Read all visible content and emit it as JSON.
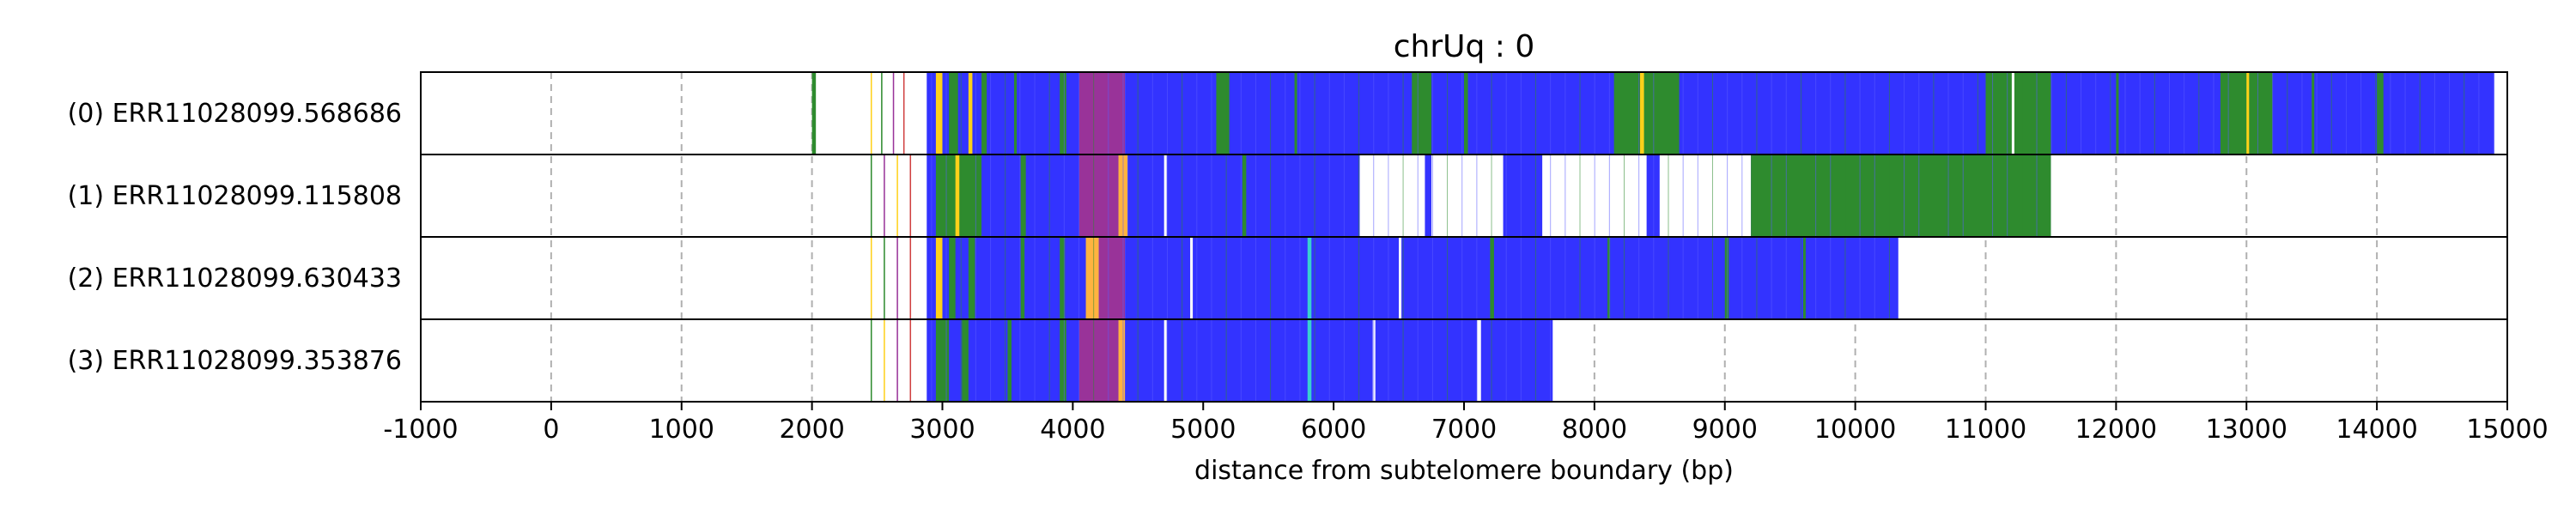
{
  "chart_data": {
    "type": "bar",
    "title": "chrUq : 0",
    "xlabel": "distance from subtelomere boundary (bp)",
    "ylabel": "",
    "xlim": [
      -1000,
      15000
    ],
    "xticks": [
      -1000,
      0,
      1000,
      2000,
      3000,
      4000,
      5000,
      6000,
      7000,
      8000,
      9000,
      10000,
      11000,
      12000,
      13000,
      14000,
      15000
    ],
    "grid": "vertical dashed",
    "colors": {
      "main": "#3333ff",
      "green": "#2e8b2e",
      "yellow": "#ffd11a",
      "orange": "#ffb340",
      "purple": "#993399",
      "white": "#ffffff",
      "gap": "#ffffff",
      "cyan": "#39d0d0",
      "red": "#d04040",
      "border": "#000000",
      "grid": "#b0b0b0"
    },
    "reads": [
      {
        "label": "(0) ERR11028099.568686",
        "end": 14900,
        "segments": [
          {
            "start": 2000,
            "end": 2030,
            "color": "green"
          },
          {
            "start": 2450,
            "end": 2460,
            "color": "yellow"
          },
          {
            "start": 2530,
            "end": 2540,
            "color": "green"
          },
          {
            "start": 2620,
            "end": 2630,
            "color": "purple"
          },
          {
            "start": 2700,
            "end": 2710,
            "color": "red"
          },
          {
            "start": 2880,
            "end": 4400,
            "color": "main"
          },
          {
            "start": 2950,
            "end": 3000,
            "color": "yellow"
          },
          {
            "start": 3050,
            "end": 3120,
            "color": "green"
          },
          {
            "start": 3200,
            "end": 3230,
            "color": "yellow"
          },
          {
            "start": 3300,
            "end": 3340,
            "color": "green"
          },
          {
            "start": 3550,
            "end": 3570,
            "color": "green"
          },
          {
            "start": 3900,
            "end": 3950,
            "color": "green"
          },
          {
            "start": 4050,
            "end": 4400,
            "color": "purple"
          },
          {
            "start": 4400,
            "end": 14900,
            "color": "main"
          },
          {
            "start": 5100,
            "end": 5200,
            "color": "green"
          },
          {
            "start": 5700,
            "end": 5720,
            "color": "green"
          },
          {
            "start": 6600,
            "end": 6750,
            "color": "green"
          },
          {
            "start": 7000,
            "end": 7030,
            "color": "green"
          },
          {
            "start": 8150,
            "end": 8650,
            "color": "green"
          },
          {
            "start": 8350,
            "end": 8380,
            "color": "yellow"
          },
          {
            "start": 11000,
            "end": 11500,
            "color": "green"
          },
          {
            "start": 11200,
            "end": 11220,
            "color": "white"
          },
          {
            "start": 12000,
            "end": 12020,
            "color": "green"
          },
          {
            "start": 12800,
            "end": 13200,
            "color": "green"
          },
          {
            "start": 13000,
            "end": 13020,
            "color": "yellow"
          },
          {
            "start": 13500,
            "end": 13520,
            "color": "green"
          },
          {
            "start": 14000,
            "end": 14050,
            "color": "green"
          }
        ]
      },
      {
        "label": "(1) ERR11028099.115808",
        "end": 11500,
        "segments": [
          {
            "start": 2450,
            "end": 2460,
            "color": "green"
          },
          {
            "start": 2550,
            "end": 2560,
            "color": "purple"
          },
          {
            "start": 2650,
            "end": 2660,
            "color": "yellow"
          },
          {
            "start": 2750,
            "end": 2760,
            "color": "red"
          },
          {
            "start": 2880,
            "end": 4400,
            "color": "main"
          },
          {
            "start": 2950,
            "end": 3300,
            "color": "green"
          },
          {
            "start": 3100,
            "end": 3130,
            "color": "yellow"
          },
          {
            "start": 3600,
            "end": 3640,
            "color": "green"
          },
          {
            "start": 4050,
            "end": 4350,
            "color": "purple"
          },
          {
            "start": 4350,
            "end": 4420,
            "color": "orange"
          },
          {
            "start": 4420,
            "end": 11500,
            "color": "main"
          },
          {
            "start": 4700,
            "end": 4720,
            "color": "white"
          },
          {
            "start": 5300,
            "end": 5330,
            "color": "green"
          },
          {
            "start": 6200,
            "end": 6700,
            "color": "white"
          },
          {
            "start": 6750,
            "end": 7300,
            "color": "white"
          },
          {
            "start": 7600,
            "end": 8400,
            "color": "white"
          },
          {
            "start": 8500,
            "end": 9200,
            "color": "white"
          },
          {
            "start": 9200,
            "end": 10700,
            "color": "green"
          },
          {
            "start": 10700,
            "end": 11500,
            "color": "green"
          }
        ]
      },
      {
        "label": "(2) ERR11028099.630433",
        "end": 10330,
        "segments": [
          {
            "start": 2450,
            "end": 2460,
            "color": "yellow"
          },
          {
            "start": 2550,
            "end": 2560,
            "color": "green"
          },
          {
            "start": 2650,
            "end": 2660,
            "color": "purple"
          },
          {
            "start": 2750,
            "end": 2760,
            "color": "red"
          },
          {
            "start": 2880,
            "end": 4400,
            "color": "main"
          },
          {
            "start": 2950,
            "end": 3000,
            "color": "yellow"
          },
          {
            "start": 3050,
            "end": 3100,
            "color": "green"
          },
          {
            "start": 3200,
            "end": 3250,
            "color": "green"
          },
          {
            "start": 3600,
            "end": 3630,
            "color": "green"
          },
          {
            "start": 3900,
            "end": 3940,
            "color": "green"
          },
          {
            "start": 4100,
            "end": 4200,
            "color": "orange"
          },
          {
            "start": 4200,
            "end": 4400,
            "color": "purple"
          },
          {
            "start": 4400,
            "end": 10330,
            "color": "main"
          },
          {
            "start": 4900,
            "end": 4920,
            "color": "white"
          },
          {
            "start": 5800,
            "end": 5830,
            "color": "cyan"
          },
          {
            "start": 6500,
            "end": 6520,
            "color": "white"
          },
          {
            "start": 7200,
            "end": 7230,
            "color": "green"
          },
          {
            "start": 8100,
            "end": 8120,
            "color": "green"
          },
          {
            "start": 9000,
            "end": 9030,
            "color": "green"
          },
          {
            "start": 9600,
            "end": 9620,
            "color": "green"
          }
        ]
      },
      {
        "label": "(3) ERR11028099.353876",
        "end": 7680,
        "segments": [
          {
            "start": 2450,
            "end": 2460,
            "color": "green"
          },
          {
            "start": 2550,
            "end": 2560,
            "color": "yellow"
          },
          {
            "start": 2650,
            "end": 2660,
            "color": "purple"
          },
          {
            "start": 2750,
            "end": 2760,
            "color": "red"
          },
          {
            "start": 2880,
            "end": 4400,
            "color": "main"
          },
          {
            "start": 2950,
            "end": 3050,
            "color": "green"
          },
          {
            "start": 3150,
            "end": 3200,
            "color": "green"
          },
          {
            "start": 3500,
            "end": 3530,
            "color": "green"
          },
          {
            "start": 3900,
            "end": 3950,
            "color": "green"
          },
          {
            "start": 4050,
            "end": 4350,
            "color": "purple"
          },
          {
            "start": 4350,
            "end": 4400,
            "color": "orange"
          },
          {
            "start": 4400,
            "end": 7680,
            "color": "main"
          },
          {
            "start": 4700,
            "end": 4720,
            "color": "white"
          },
          {
            "start": 5800,
            "end": 5830,
            "color": "cyan"
          },
          {
            "start": 6300,
            "end": 6320,
            "color": "white"
          },
          {
            "start": 7100,
            "end": 7130,
            "color": "white"
          }
        ]
      }
    ]
  }
}
